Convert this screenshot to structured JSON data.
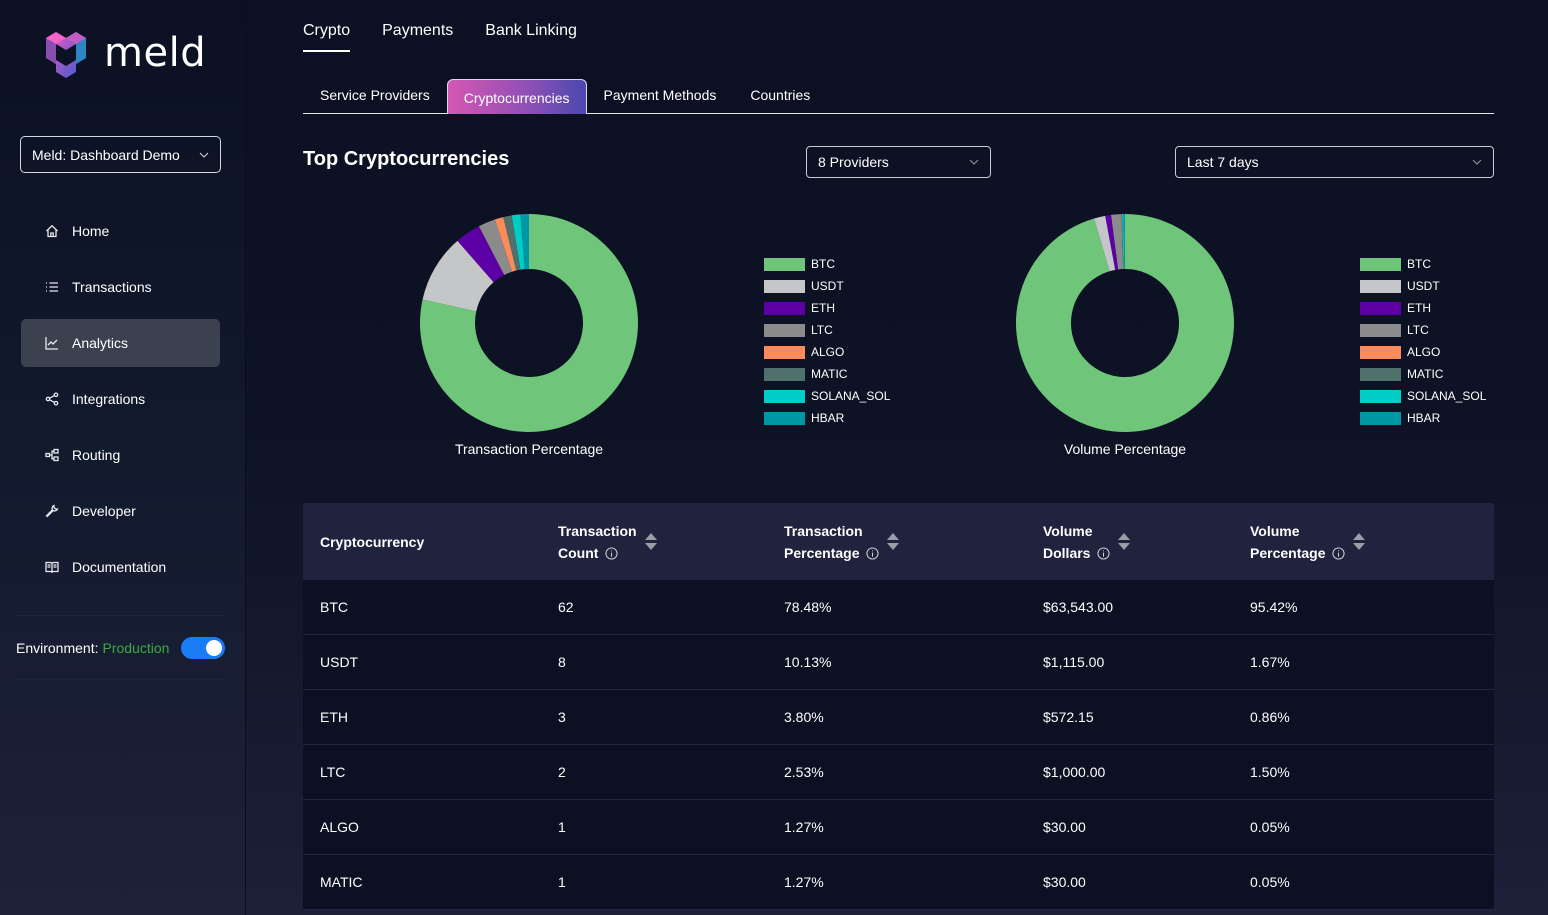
{
  "brand": {
    "name": "meld"
  },
  "sidebar": {
    "workspace": "Meld: Dashboard Demo",
    "items": [
      {
        "label": "Home",
        "icon": "home-icon",
        "active": false
      },
      {
        "label": "Transactions",
        "icon": "list-icon",
        "active": false
      },
      {
        "label": "Analytics",
        "icon": "chart-line-icon",
        "active": true
      },
      {
        "label": "Integrations",
        "icon": "share-icon",
        "active": false
      },
      {
        "label": "Routing",
        "icon": "routing-icon",
        "active": false
      },
      {
        "label": "Developer",
        "icon": "wrench-icon",
        "active": false
      },
      {
        "label": "Documentation",
        "icon": "book-icon",
        "active": false
      }
    ],
    "environment_label": "Environment:",
    "environment_value": "Production",
    "environment_toggle_on": true
  },
  "top_tabs": [
    {
      "label": "Crypto",
      "active": true
    },
    {
      "label": "Payments",
      "active": false
    },
    {
      "label": "Bank Linking",
      "active": false
    }
  ],
  "sub_tabs": [
    {
      "label": "Service Providers",
      "active": false
    },
    {
      "label": "Cryptocurrencies",
      "active": true
    },
    {
      "label": "Payment Methods",
      "active": false
    },
    {
      "label": "Countries",
      "active": false
    }
  ],
  "page": {
    "title": "Top Cryptocurrencies",
    "providers_filter": "8 Providers",
    "date_range": "Last 7 days"
  },
  "colors": {
    "BTC": "#6fc67b",
    "USDT": "#c4c6c8",
    "ETH": "#5c00a6",
    "LTC": "#8b8b8b",
    "ALGO": "#fd8a5b",
    "MATIC": "#50716b",
    "SOLANA_SOL": "#00cdc5",
    "HBAR": "#0097a5"
  },
  "chart_data": [
    {
      "type": "pie",
      "title": "Transaction Percentage",
      "categories": [
        "BTC",
        "USDT",
        "ETH",
        "LTC",
        "ALGO",
        "MATIC",
        "SOLANA_SOL",
        "HBAR"
      ],
      "values": [
        78.48,
        10.13,
        3.8,
        2.53,
        1.27,
        1.27,
        1.27,
        1.27
      ],
      "legend": "right"
    },
    {
      "type": "pie",
      "title": "Volume Percentage",
      "categories": [
        "BTC",
        "USDT",
        "ETH",
        "LTC",
        "ALGO",
        "MATIC",
        "SOLANA_SOL",
        "HBAR"
      ],
      "values": [
        95.42,
        1.67,
        0.86,
        1.5,
        0.05,
        0.05,
        0.25,
        0.2
      ],
      "legend": "right"
    }
  ],
  "table": {
    "headers": [
      {
        "line1": "Cryptocurrency",
        "line2": "",
        "info": false,
        "sortable": false
      },
      {
        "line1": "Transaction",
        "line2": "Count",
        "info": true,
        "sortable": true
      },
      {
        "line1": "Transaction",
        "line2": "Percentage",
        "info": true,
        "sortable": true
      },
      {
        "line1": "Volume",
        "line2": "Dollars",
        "info": true,
        "sortable": true
      },
      {
        "line1": "Volume",
        "line2": "Percentage",
        "info": true,
        "sortable": true
      }
    ],
    "rows": [
      [
        "BTC",
        "62",
        "78.48%",
        "$63,543.00",
        "95.42%"
      ],
      [
        "USDT",
        "8",
        "10.13%",
        "$1,115.00",
        "1.67%"
      ],
      [
        "ETH",
        "3",
        "3.80%",
        "$572.15",
        "0.86%"
      ],
      [
        "LTC",
        "2",
        "2.53%",
        "$1,000.00",
        "1.50%"
      ],
      [
        "ALGO",
        "1",
        "1.27%",
        "$30.00",
        "0.05%"
      ],
      [
        "MATIC",
        "1",
        "1.27%",
        "$30.00",
        "0.05%"
      ]
    ]
  }
}
